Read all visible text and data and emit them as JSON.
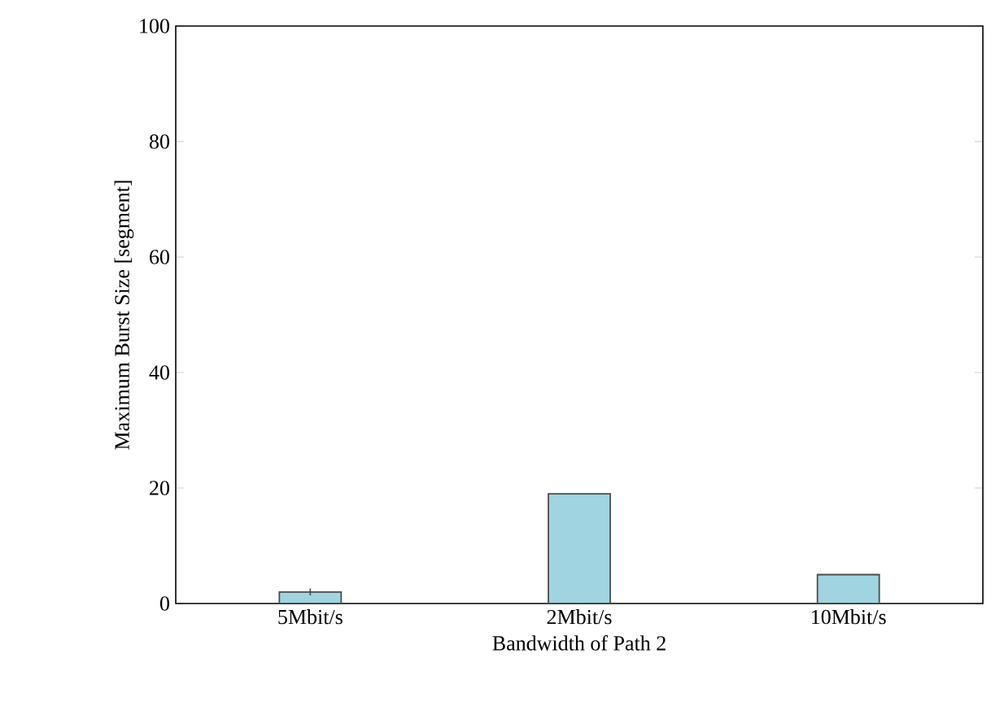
{
  "chart_data": {
    "type": "bar",
    "xlabel": "Bandwidth of Path 2",
    "ylabel": "Maximum Burst Size [segment]",
    "categories": [
      "5Mbit/s",
      "2Mbit/s",
      "10Mbit/s"
    ],
    "values": [
      2,
      19,
      5
    ],
    "errors": [
      0.6,
      null,
      null
    ],
    "color": "#a0d4e0",
    "ylim": [
      0,
      100
    ],
    "yticks": [
      0,
      20,
      40,
      60,
      80,
      100
    ],
    "grid": false
  }
}
